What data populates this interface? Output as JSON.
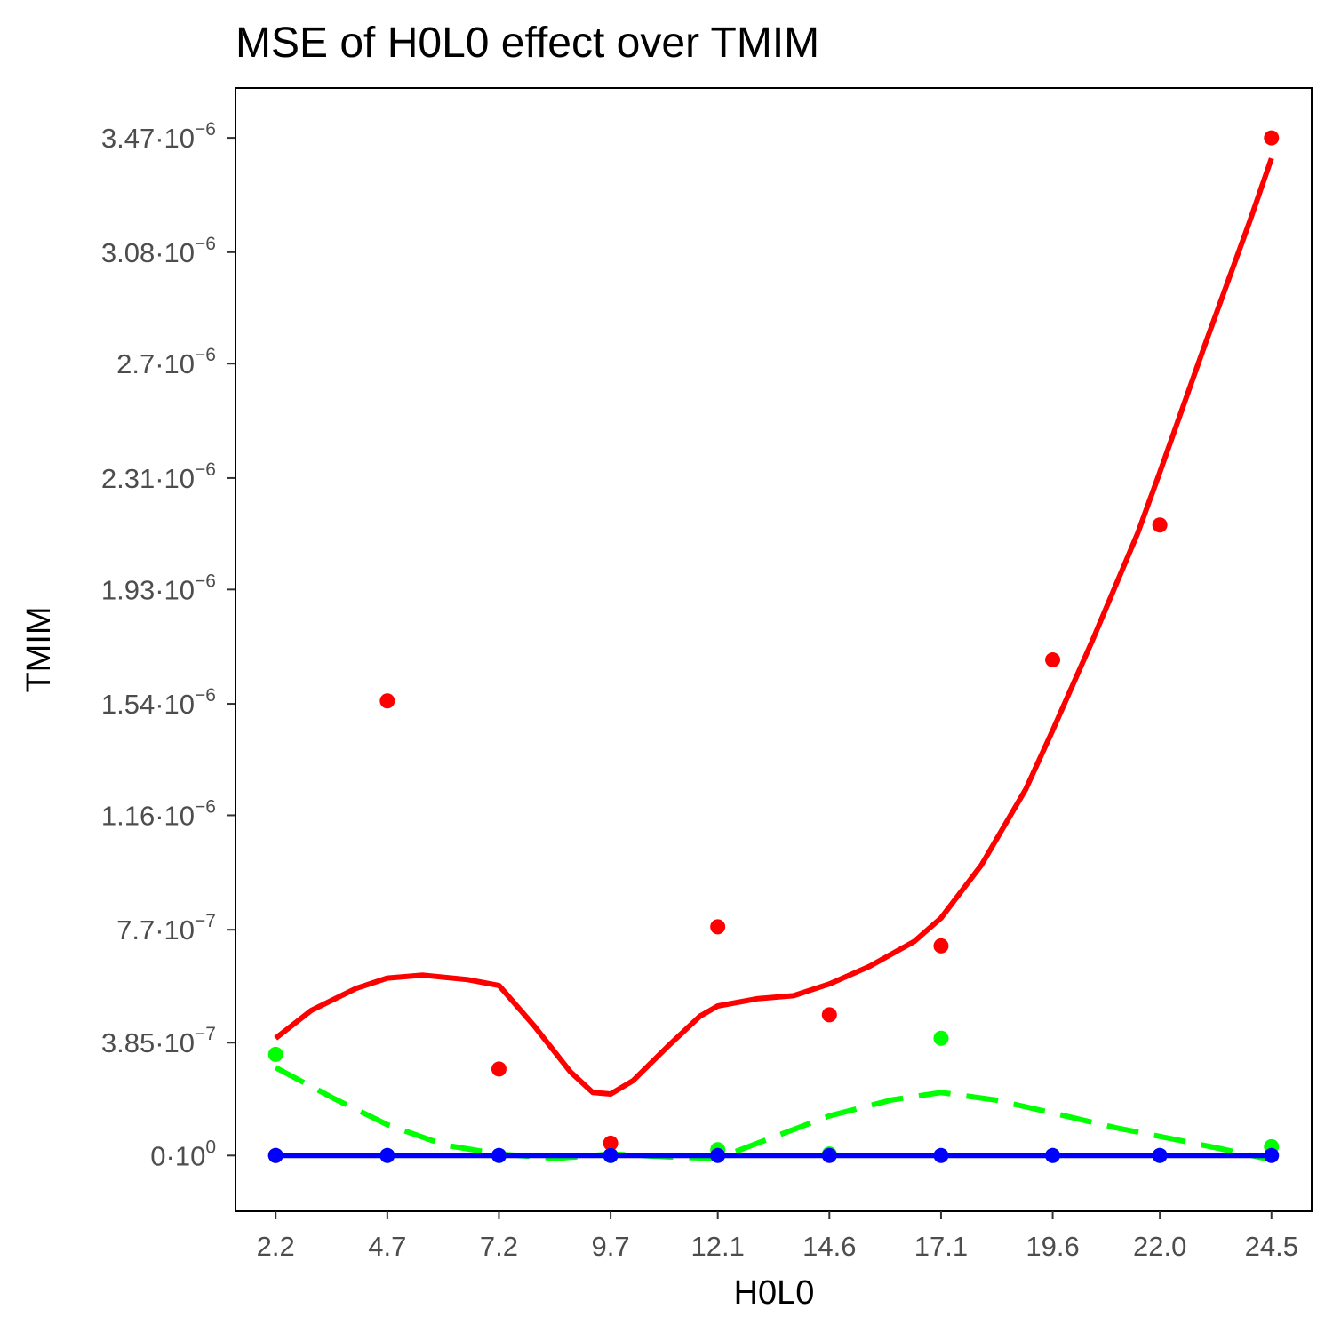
{
  "chart_data": {
    "type": "line",
    "title": "MSE of H0L0 effect over  TMIM",
    "xlabel": "H0L0",
    "ylabel": "TMIM",
    "x_ticks": [
      "2.2",
      "4.7",
      "7.2",
      "9.7",
      "12.1",
      "14.6",
      "17.1",
      "19.6",
      "22.0",
      "24.5"
    ],
    "y_ticks": [
      {
        "value": 0,
        "mantissa": "0",
        "exponent": "0"
      },
      {
        "value": 3.85e-07,
        "mantissa": "3.85",
        "exponent": "−7"
      },
      {
        "value": 7.7e-07,
        "mantissa": "7.7",
        "exponent": "−7"
      },
      {
        "value": 1.16e-06,
        "mantissa": "1.16",
        "exponent": "−6"
      },
      {
        "value": 1.54e-06,
        "mantissa": "1.54",
        "exponent": "−6"
      },
      {
        "value": 1.93e-06,
        "mantissa": "1.93",
        "exponent": "−6"
      },
      {
        "value": 2.31e-06,
        "mantissa": "2.31",
        "exponent": "−6"
      },
      {
        "value": 2.7e-06,
        "mantissa": "2.7",
        "exponent": "−6"
      },
      {
        "value": 3.08e-06,
        "mantissa": "3.08",
        "exponent": "−6"
      },
      {
        "value": 3.47e-06,
        "mantissa": "3.47",
        "exponent": "−6"
      }
    ],
    "xlim": [
      1.3,
      25.4
    ],
    "ylim": [
      -1.9e-07,
      3.64e-06
    ],
    "grid": false,
    "series": [
      {
        "color": "#ff0000",
        "line_style": "solid",
        "points": [
          [
            2.2,
            0
          ],
          [
            4.7,
            1.55e-06
          ],
          [
            7.2,
            2.95e-07
          ],
          [
            9.7,
            4.2e-08
          ],
          [
            12.1,
            7.8e-07
          ],
          [
            14.6,
            4.8e-07
          ],
          [
            17.1,
            7.15e-07
          ],
          [
            19.6,
            1.69e-06
          ],
          [
            22.0,
            2.15e-06
          ],
          [
            24.5,
            3.47e-06
          ]
        ],
        "curve": [
          [
            2.2,
            4e-07
          ],
          [
            3.0,
            4.95e-07
          ],
          [
            4.0,
            5.7e-07
          ],
          [
            4.7,
            6.05e-07
          ],
          [
            5.5,
            6.15e-07
          ],
          [
            6.5,
            6e-07
          ],
          [
            7.2,
            5.8e-07
          ],
          [
            8.0,
            4.4e-07
          ],
          [
            8.8,
            2.85e-07
          ],
          [
            9.3,
            2.15e-07
          ],
          [
            9.7,
            2.1e-07
          ],
          [
            10.2,
            2.55e-07
          ],
          [
            11.0,
            3.75e-07
          ],
          [
            11.7,
            4.75e-07
          ],
          [
            12.1,
            5.1e-07
          ],
          [
            13.0,
            5.35e-07
          ],
          [
            13.8,
            5.45e-07
          ],
          [
            14.6,
            5.85e-07
          ],
          [
            15.5,
            6.45e-07
          ],
          [
            16.5,
            7.3e-07
          ],
          [
            17.1,
            8.1e-07
          ],
          [
            18.0,
            9.9e-07
          ],
          [
            19.0,
            1.25e-06
          ],
          [
            19.6,
            1.45e-06
          ],
          [
            20.5,
            1.76e-06
          ],
          [
            21.5,
            2.12e-06
          ],
          [
            22.0,
            2.33e-06
          ],
          [
            23.0,
            2.76e-06
          ],
          [
            24.0,
            3.18e-06
          ],
          [
            24.5,
            3.4e-06
          ]
        ]
      },
      {
        "color": "#00ff00",
        "line_style": "dashed",
        "points": [
          [
            2.2,
            3.45e-07
          ],
          [
            4.7,
            0
          ],
          [
            7.2,
            0
          ],
          [
            9.7,
            0
          ],
          [
            12.1,
            2e-08
          ],
          [
            14.6,
            5e-09
          ],
          [
            17.1,
            4e-07
          ],
          [
            19.6,
            0
          ],
          [
            22.0,
            0
          ],
          [
            24.5,
            3e-08
          ]
        ],
        "curve": [
          [
            2.2,
            3e-07
          ],
          [
            3.5,
            1.95e-07
          ],
          [
            4.7,
            1.05e-07
          ],
          [
            6.0,
            3.5e-08
          ],
          [
            7.2,
            5e-09
          ],
          [
            8.5,
            -1e-08
          ],
          [
            9.7,
            5e-09
          ],
          [
            11.0,
            -5e-09
          ],
          [
            12.1,
            -1e-08
          ],
          [
            13.3,
            6e-08
          ],
          [
            14.6,
            1.35e-07
          ],
          [
            16.0,
            1.9e-07
          ],
          [
            17.1,
            2.15e-07
          ],
          [
            18.3,
            1.9e-07
          ],
          [
            19.6,
            1.45e-07
          ],
          [
            21.0,
            9.5e-08
          ],
          [
            22.0,
            6.5e-08
          ],
          [
            23.3,
            2.5e-08
          ],
          [
            24.5,
            -1.5e-08
          ]
        ]
      },
      {
        "color": "#0000ff",
        "line_style": "solid",
        "points": [
          [
            2.2,
            0
          ],
          [
            4.7,
            0
          ],
          [
            7.2,
            0
          ],
          [
            9.7,
            0
          ],
          [
            12.1,
            0
          ],
          [
            14.6,
            0
          ],
          [
            17.1,
            0
          ],
          [
            19.6,
            0
          ],
          [
            22.0,
            0
          ],
          [
            24.5,
            0
          ]
        ],
        "curve": [
          [
            2.2,
            0
          ],
          [
            24.5,
            0
          ]
        ]
      }
    ]
  }
}
